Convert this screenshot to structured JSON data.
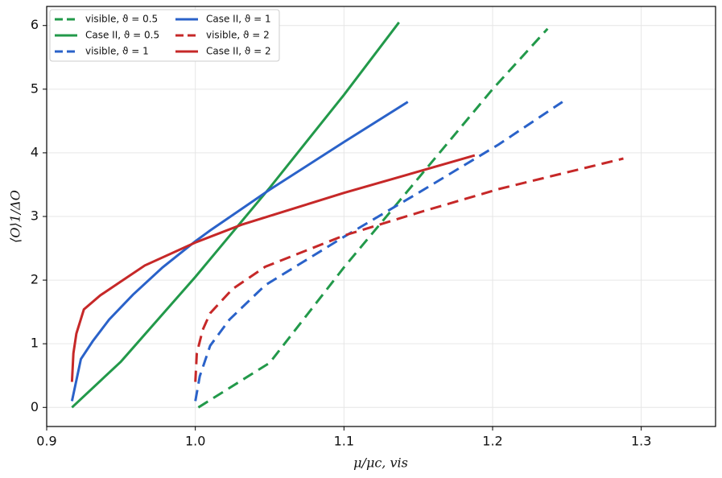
{
  "chart_data": {
    "type": "line",
    "xlabel": "μ/μc, vis",
    "ylabel": "⟨O⟩1/ΔO",
    "xlim": [
      0.9,
      1.35
    ],
    "ylim": [
      -0.3,
      6.3
    ],
    "xticks": [
      0.9,
      {
        "value": 1,
        "label": "1.0"
      },
      1.1,
      1.2,
      1.3
    ],
    "yticks": [
      0,
      1,
      2,
      3,
      4,
      5,
      6
    ],
    "grid": true,
    "legend": "upper left",
    "series": [
      {
        "name": "visible, ϑ = 0.5",
        "color": "#22994a",
        "dashed": true,
        "x": [
          1.002,
          1.05,
          1.1,
          1.15,
          1.2,
          1.237
        ],
        "values": [
          0,
          0.7,
          2.2,
          3.6,
          5.0,
          5.95
        ]
      },
      {
        "name": "Case II, ϑ = 0.5",
        "color": "#22994a",
        "dashed": false,
        "x": [
          0.917,
          0.95,
          1.0,
          1.05,
          1.1,
          1.137
        ],
        "values": [
          0,
          0.72,
          2.05,
          3.45,
          4.91,
          6.05
        ]
      },
      {
        "name": "visible, ϑ = 1",
        "color": "#2a62c9",
        "dashed": true,
        "x": [
          1.0,
          1.003,
          1.01,
          1.023,
          1.047,
          1.1,
          1.15,
          1.204,
          1.247
        ],
        "values": [
          0.1,
          0.49,
          0.97,
          1.38,
          1.92,
          2.68,
          3.37,
          4.13,
          4.8
        ]
      },
      {
        "name": "Case II, ϑ = 1",
        "color": "#2a62c9",
        "dashed": false,
        "x": [
          0.917,
          0.923,
          0.931,
          0.942,
          0.958,
          0.978,
          1.0,
          1.01,
          1.05,
          1.1,
          1.143
        ],
        "values": [
          0.1,
          0.76,
          1.04,
          1.38,
          1.77,
          2.2,
          2.61,
          2.78,
          3.42,
          4.17,
          4.8
        ]
      },
      {
        "name": "visible, ϑ = 2",
        "color": "#c62828",
        "dashed": true,
        "x": [
          1.0,
          1.001,
          1.005,
          1.01,
          1.025,
          1.047,
          1.1,
          1.15,
          1.204,
          1.288
        ],
        "values": [
          0.4,
          0.85,
          1.22,
          1.48,
          1.86,
          2.21,
          2.7,
          3.06,
          3.43,
          3.91
        ]
      },
      {
        "name": "Case II, ϑ = 2",
        "color": "#c62828",
        "dashed": false,
        "x": [
          0.917,
          0.918,
          0.92,
          0.925,
          0.936,
          0.95,
          0.966,
          1.0,
          1.031,
          1.1,
          1.188
        ],
        "values": [
          0.4,
          0.85,
          1.16,
          1.54,
          1.76,
          1.98,
          2.23,
          2.59,
          2.87,
          3.37,
          3.96
        ]
      }
    ]
  }
}
